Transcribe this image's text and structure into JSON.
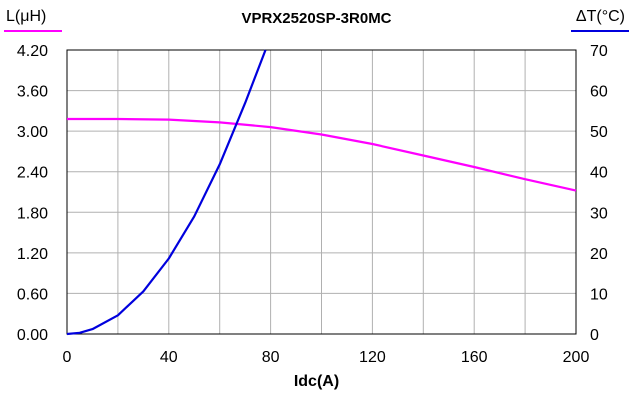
{
  "chart_data": {
    "type": "line",
    "title": "VPRX2520SP-3R0MC",
    "xlabel": "Idc(A)",
    "ylabel_left": "L(μH)",
    "ylabel_right": "ΔT(°C)",
    "xlim": [
      0,
      200
    ],
    "ylim_left": [
      0,
      4.2
    ],
    "ylim_right": [
      0,
      70
    ],
    "x_ticks": [
      "0",
      "40",
      "80",
      "120",
      "160",
      "200"
    ],
    "y_left_ticks": [
      "0.00",
      "0.60",
      "1.20",
      "1.80",
      "2.40",
      "3.00",
      "3.60",
      "4.20"
    ],
    "y_right_ticks": [
      "0",
      "10",
      "20",
      "30",
      "40",
      "50",
      "60",
      "70"
    ],
    "grid": true,
    "series": [
      {
        "axis": "left",
        "color": "#ff00ff",
        "x": [
          0,
          20,
          40,
          60,
          80,
          100,
          120,
          140,
          160,
          180,
          200
        ],
        "y": [
          3.18,
          3.18,
          3.17,
          3.13,
          3.06,
          2.95,
          2.81,
          2.64,
          2.47,
          2.29,
          2.12
        ]
      },
      {
        "axis": "right",
        "color": "#0000dd",
        "x": [
          0,
          5,
          10,
          20,
          30,
          40,
          50,
          60,
          70,
          78
        ],
        "y": [
          0,
          0.3,
          1.2,
          4.6,
          10.5,
          18.6,
          29.0,
          41.8,
          56.9,
          70.0
        ]
      }
    ]
  },
  "colors": {
    "left_axis": "#ff00ff",
    "right_axis": "#0000dd",
    "grid": "#b0b0b0"
  }
}
